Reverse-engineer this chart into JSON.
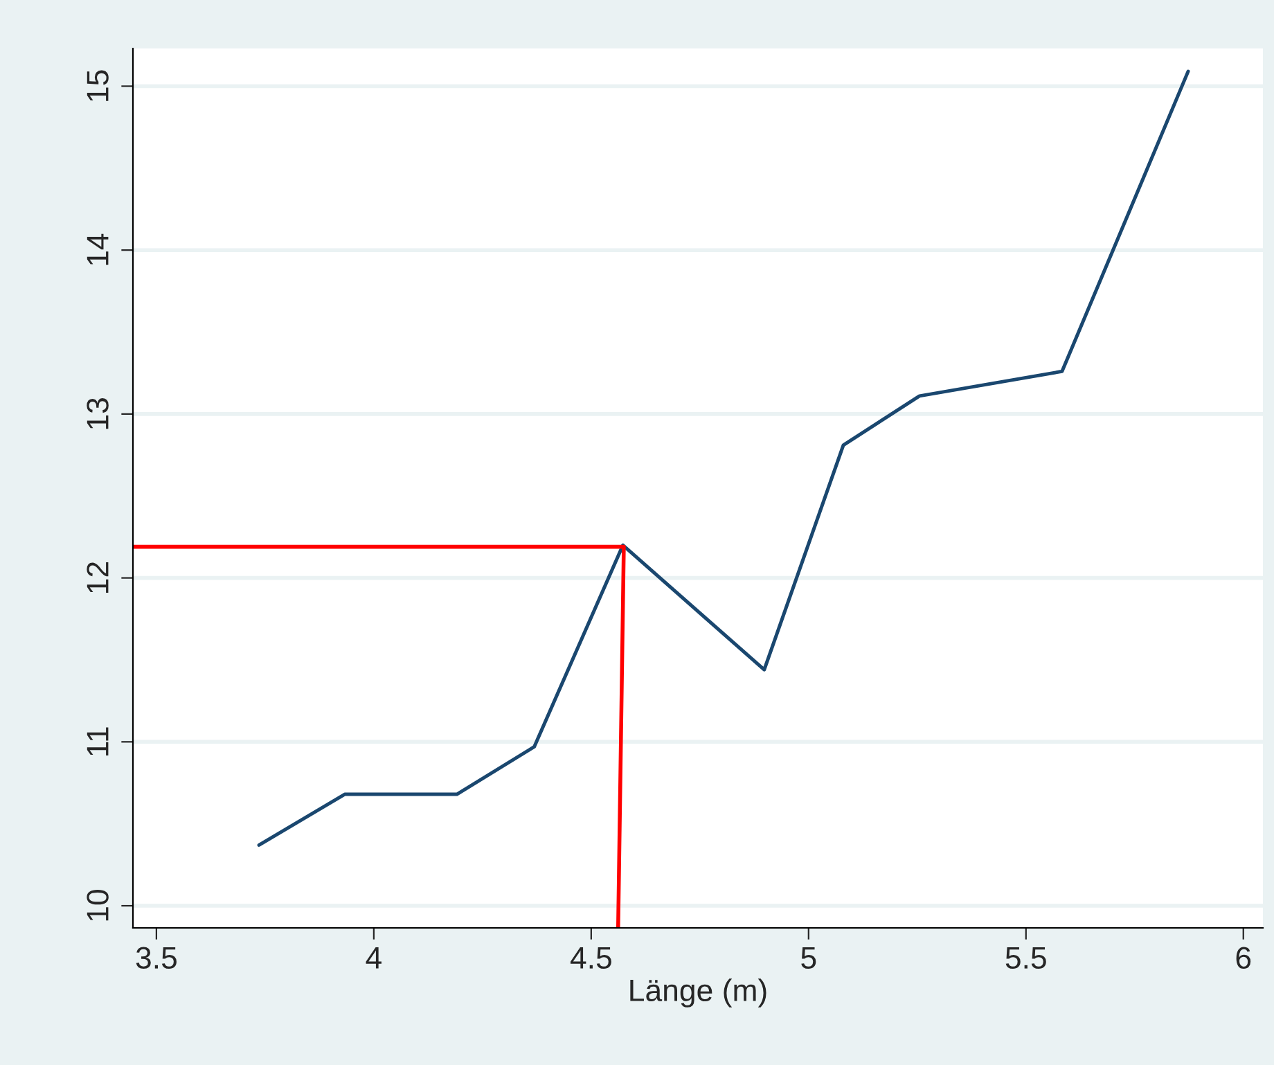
{
  "chart_data": {
    "type": "line",
    "xlabel": "Länge (m)",
    "series": [
      {
        "color": "#1a476f",
        "x": [
          3.736,
          3.933,
          4.191,
          4.369,
          4.573,
          4.898,
          5.08,
          5.255,
          5.583,
          5.873
        ],
        "values": [
          10.37,
          10.68,
          10.68,
          10.97,
          12.2,
          11.44,
          12.81,
          13.11,
          13.26,
          15.09
        ]
      },
      {
        "color": "#ff0000",
        "x": [
          3.446,
          4.575,
          4.562
        ],
        "values": [
          12.19,
          12.19,
          9.865
        ]
      }
    ],
    "xlim": [
      3.446,
      6.045
    ],
    "ylim": [
      9.865,
      15.23
    ],
    "xticks": [
      3.5,
      4,
      4.5,
      5,
      5.5,
      6
    ],
    "yticks": [
      10,
      11,
      12,
      13,
      14,
      15
    ],
    "grid": "y",
    "legend": false,
    "marker": "none",
    "line_style": "solid"
  }
}
